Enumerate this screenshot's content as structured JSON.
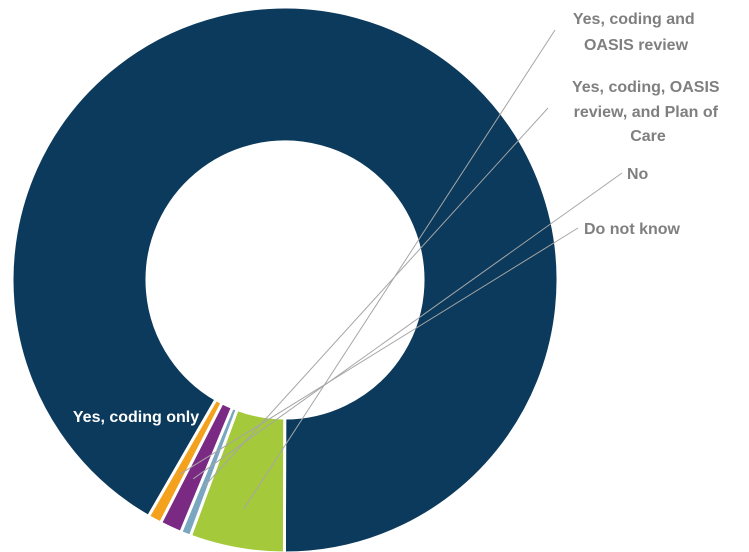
{
  "chart_data": {
    "type": "pie",
    "donut": true,
    "legend": "none",
    "slices": [
      {
        "label": "Yes, coding only",
        "value": 91.7,
        "color": "#0b3a5c"
      },
      {
        "label": "Yes, coding and OASIS review",
        "value": 5.6,
        "color": "#a4c93a"
      },
      {
        "label": "Yes, coding, OASIS review, and Plan of Care",
        "value": 0.6,
        "color": "#7aa6bf"
      },
      {
        "label": "No",
        "value": 1.3,
        "color": "#7a2a83"
      },
      {
        "label": "Do not know",
        "value": 0.8,
        "color": "#f4a11d"
      }
    ]
  }
}
